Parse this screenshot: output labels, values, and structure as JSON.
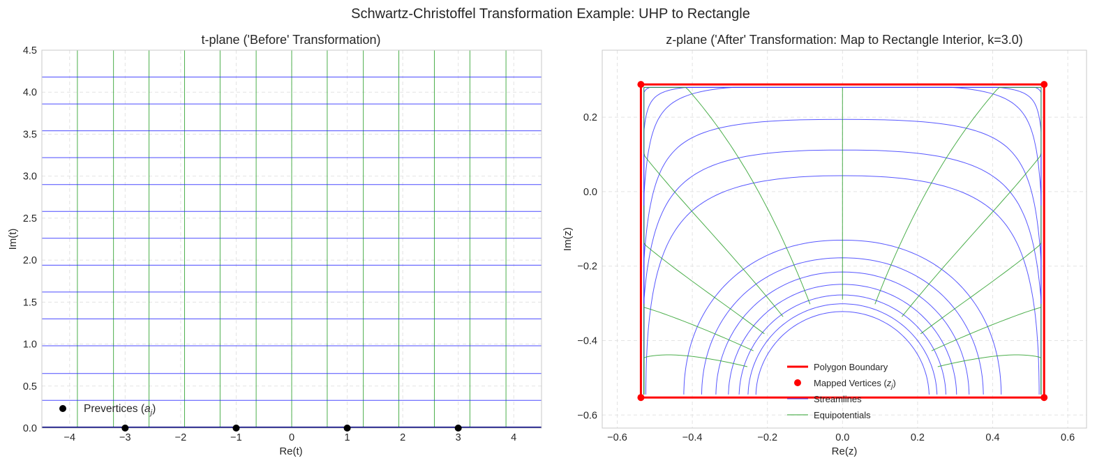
{
  "figure": {
    "title": "Schwartz-Christoffel Transformation Example: UHP to Rectangle"
  },
  "chart_data": [
    {
      "type": "line",
      "title": "t-plane ('Before' Transformation)",
      "xlabel": "Re(t)",
      "ylabel": "Im(t)",
      "xlim": [
        -4.5,
        4.5
      ],
      "ylim": [
        0,
        4.5
      ],
      "xticks": [
        -4,
        -3,
        -2,
        -1,
        0,
        1,
        2,
        3,
        4
      ],
      "yticks": [
        0.0,
        0.5,
        1.0,
        1.5,
        2.0,
        2.5,
        3.0,
        3.5,
        4.0,
        4.5
      ],
      "grid": true,
      "horizontal_lines_y": [
        0.01,
        0.33,
        0.65,
        0.98,
        1.3,
        1.62,
        1.94,
        2.26,
        2.58,
        2.9,
        3.22,
        3.54,
        3.86,
        4.18
      ],
      "vertical_lines_x": [
        -3.86,
        -3.21,
        -2.57,
        -1.93,
        -1.29,
        -0.64,
        0.0,
        0.64,
        1.29,
        1.93,
        2.57,
        3.21,
        3.86
      ],
      "prevertices": {
        "name": "Prevertices ($a_j$)",
        "legend_label": "Prevertices (",
        "legend_symbol": "a",
        "legend_subscript": "j",
        "legend_close": ")",
        "x": [
          -3,
          -1,
          1,
          3
        ],
        "y": [
          0,
          0,
          0,
          0
        ]
      },
      "legend_position": "lower left",
      "colors": {
        "horizontal": "#2b2bff",
        "vertical": "#2ca02c",
        "prevertices": "#000000",
        "boundary": "#000080"
      }
    },
    {
      "type": "line",
      "title": "z-plane ('After' Transformation: Map to Rectangle Interior, k=3.0)",
      "xlabel": "Re(z)",
      "ylabel": "Im(z)",
      "xlim": [
        -0.64,
        0.65
      ],
      "ylim": [
        -0.635,
        0.38
      ],
      "xticks": [
        -0.6,
        -0.4,
        -0.2,
        0.0,
        0.2,
        0.4,
        0.6
      ],
      "yticks": [
        -0.6,
        -0.4,
        -0.2,
        0.0,
        0.2
      ],
      "grid": true,
      "rectangle": {
        "xmin": -0.537,
        "xmax": 0.537,
        "ymin": -0.553,
        "ymax": 0.288
      },
      "mapped_vertices": {
        "x": [
          -0.537,
          0.537,
          0.537,
          -0.537
        ],
        "y": [
          -0.553,
          -0.553,
          0.288,
          0.288
        ]
      },
      "streamline_model": {
        "center": [
          0.0,
          -0.553
        ],
        "inner_radius": 0.2,
        "radius_x": [
          0.243,
          0.265,
          0.29,
          0.32,
          0.355,
          0.395,
          0.445,
          0.51,
          0.59,
          0.7,
          0.86,
          1.12,
          1.5,
          2.2
        ]
      },
      "equipotential_angles_deg": [
        18,
        28,
        40,
        55,
        72,
        90,
        108,
        125,
        140,
        152,
        162
      ],
      "legend": [
        "Polygon Boundary",
        "Mapped Vertices ($z_j$)",
        "Streamlines",
        "Equipotentials"
      ],
      "legend_items": [
        {
          "text": "Polygon Boundary"
        },
        {
          "text": "Mapped Vertices (",
          "sym": "z",
          "sub": "j",
          "close": ")"
        },
        {
          "text": "Streamlines"
        },
        {
          "text": "Equipotentials"
        }
      ],
      "legend_position": "lower center",
      "colors": {
        "boundary": "#ff0000",
        "streamlines": "#3a3aff",
        "equipotentials": "#2ca02c"
      }
    }
  ]
}
